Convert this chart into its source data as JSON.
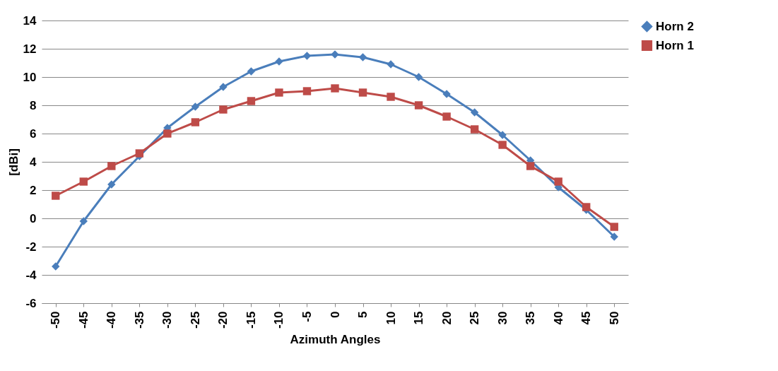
{
  "chart_data": {
    "type": "line",
    "xlabel": "Azimuth Angles",
    "ylabel": "[dBi]",
    "categories": [
      "-50",
      "-45",
      "-40",
      "-35",
      "-30",
      "-25",
      "-20",
      "-15",
      "-10",
      "-5",
      "0",
      "5",
      "10",
      "15",
      "20",
      "25",
      "30",
      "35",
      "40",
      "45",
      "50"
    ],
    "series": [
      {
        "name": "Horn 2",
        "color": "#4a7ebb",
        "marker": "diamond",
        "values": [
          -3.4,
          -0.2,
          2.4,
          4.4,
          6.4,
          7.9,
          9.3,
          10.4,
          11.1,
          11.5,
          11.6,
          11.4,
          10.9,
          10.0,
          8.8,
          7.5,
          5.9,
          4.1,
          2.2,
          0.6,
          -1.3
        ]
      },
      {
        "name": "Horn 1",
        "color": "#be4b48",
        "marker": "square",
        "values": [
          1.6,
          2.6,
          3.7,
          4.6,
          6.0,
          6.8,
          7.7,
          8.3,
          8.9,
          9.0,
          9.2,
          8.9,
          8.6,
          8.0,
          7.2,
          6.3,
          5.2,
          3.7,
          2.6,
          0.8,
          -0.6
        ]
      }
    ],
    "ylim": [
      -6,
      14
    ],
    "yticks": [
      -6,
      -4,
      -2,
      0,
      2,
      4,
      6,
      8,
      10,
      12,
      14
    ],
    "grid": "y",
    "legend": "right",
    "line_style": "solid"
  }
}
